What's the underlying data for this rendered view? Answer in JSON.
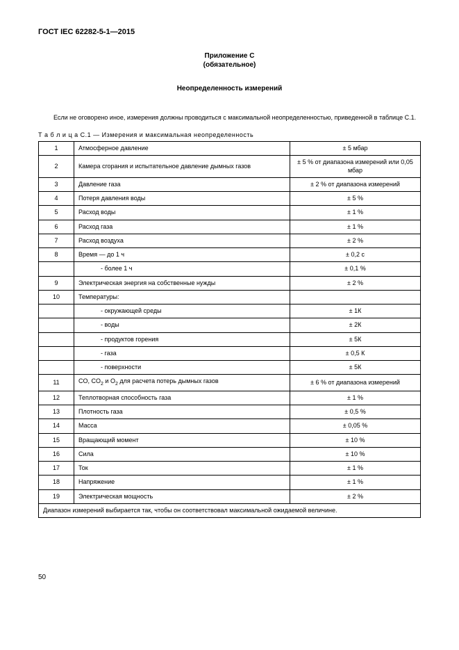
{
  "doc_header": "ГОСТ IEC 62282-5-1—2015",
  "appendix_line1": "Приложение С",
  "appendix_line2": "(обязательное)",
  "title": "Неопределенность измерений",
  "intro": "Если не оговорено иное, измерения должны проводиться с максимальной неопределенностью, приведенной в таблице С.1.",
  "table_caption": "Т а б л и ц а   С.1 — Измерения и максимальная неопределенность",
  "footer_note": "Диапазон измерений выбирается так, чтобы он соответствовал максимальной ожидаемой величине.",
  "page_number": "50",
  "rows": [
    {
      "n": "1",
      "desc": "Атмосферное давление",
      "val": "± 5 мбар"
    },
    {
      "n": "2",
      "desc": "Камера сгорания и испытательное давление дымных газов",
      "val": "± 5 % от диапазона измерений или 0,05 мбар"
    },
    {
      "n": "3",
      "desc": "Давление газа",
      "val": "± 2 % от диапазона измерений"
    },
    {
      "n": "4",
      "desc": "Потеря давления воды",
      "val": "± 5 %"
    },
    {
      "n": "5",
      "desc": "Расход воды",
      "val": "± 1 %"
    },
    {
      "n": "6",
      "desc": "Расход газа",
      "val": "± 1 %"
    },
    {
      "n": "7",
      "desc": "Расход воздуха",
      "val": "± 2 %"
    },
    {
      "n": "8",
      "desc": "Время — до 1 ч",
      "val": "± 0,2 с"
    },
    {
      "n": "",
      "desc": "- более 1 ч",
      "val": "± 0,1 %",
      "sub": true
    },
    {
      "n": "9",
      "desc": "Электрическая энергия на собственные нужды",
      "val": "± 2 %"
    },
    {
      "n": "10",
      "desc": "Температуры:",
      "val": ""
    },
    {
      "n": "",
      "desc": "- окружающей среды",
      "val": "± 1К",
      "sub": true
    },
    {
      "n": "",
      "desc": "- воды",
      "val": "± 2К",
      "sub": true
    },
    {
      "n": "",
      "desc": "- продуктов горения",
      "val": "± 5К",
      "sub": true
    },
    {
      "n": "",
      "desc": "- газа",
      "val": "± 0,5 К",
      "sub": true
    },
    {
      "n": "",
      "desc": "- поверхности",
      "val": "± 5К",
      "sub": true
    },
    {
      "n": "11",
      "desc": "CO, CO₂ и O₂ для расчета потерь дымных газов",
      "val": "± 6 % от диапазона измерений",
      "html": true
    },
    {
      "n": "12",
      "desc": "Теплотворная способность газа",
      "val": "± 1 %"
    },
    {
      "n": "13",
      "desc": "Плотность газа",
      "val": "± 0,5 %"
    },
    {
      "n": "14",
      "desc": "Масса",
      "val": "± 0,05 %"
    },
    {
      "n": "15",
      "desc": "Вращающий момент",
      "val": "± 10 %"
    },
    {
      "n": "16",
      "desc": "Сила",
      "val": "± 10 %"
    },
    {
      "n": "17",
      "desc": "Ток",
      "val": "± 1 %"
    },
    {
      "n": "18",
      "desc": "Напряжение",
      "val": "± 1 %"
    },
    {
      "n": "19",
      "desc": "Электрическая мощность",
      "val": "± 2 %"
    }
  ]
}
